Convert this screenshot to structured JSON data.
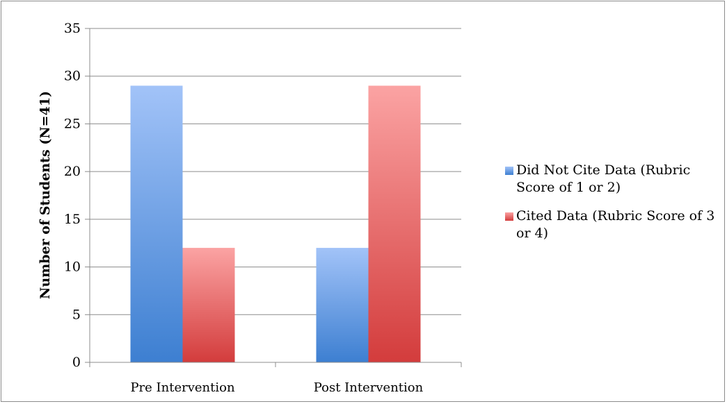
{
  "chart_data": {
    "type": "bar",
    "title": "",
    "xlabel": "",
    "ylabel": "Number of Students (N=41)",
    "ylim": [
      0,
      35
    ],
    "yticks": [
      0,
      5,
      10,
      15,
      20,
      25,
      30,
      35
    ],
    "categories": [
      "Pre Intervention",
      "Post Intervention"
    ],
    "series": [
      {
        "name": "Did Not Cite Data (Rubric Score of 1 or 2)",
        "values": [
          29,
          12
        ],
        "color": "#4a86d8"
      },
      {
        "name": "Cited Data (Rubric Score of 3 or 4)",
        "values": [
          12,
          29
        ],
        "color": "#e05050"
      }
    ],
    "grid": true,
    "legend_position": "right"
  }
}
